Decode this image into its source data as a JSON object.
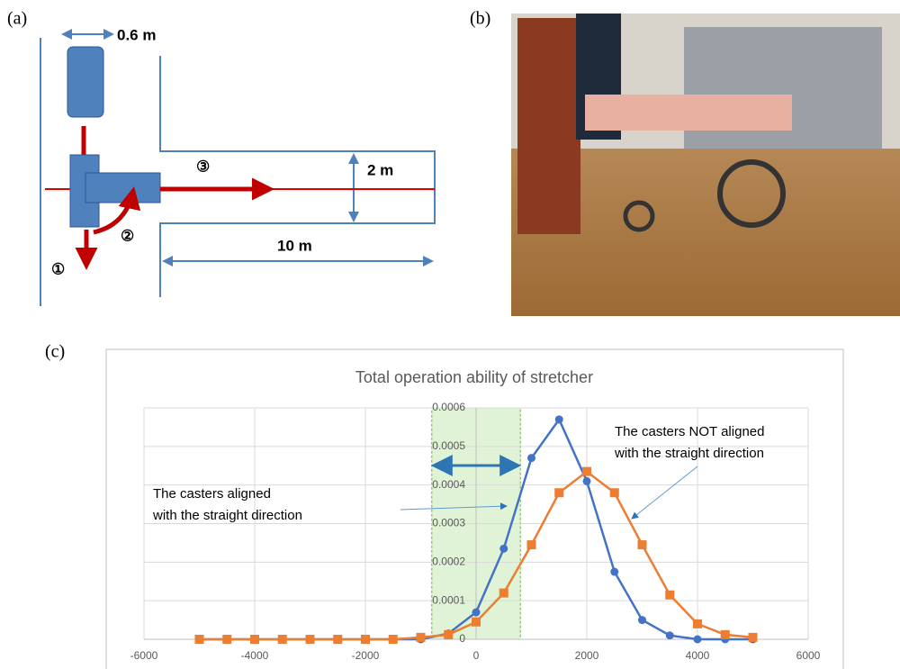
{
  "panels": {
    "a": "(a)",
    "b": "(b)",
    "c": "(c)"
  },
  "diagram": {
    "width_label": "0.6 m",
    "step1": "①",
    "step2": "②",
    "step3": "③",
    "corridor_width": "2 m",
    "corridor_length": "10 m"
  },
  "chart_data": {
    "type": "line",
    "title": "Total operation ability of stretcher",
    "x": [
      -5000,
      -4500,
      -4000,
      -3500,
      -3000,
      -2500,
      -2000,
      -1500,
      -1000,
      -500,
      0,
      500,
      1000,
      1500,
      2000,
      2500,
      3000,
      3500,
      4000,
      4500,
      5000
    ],
    "series": [
      {
        "color": "#4472c4",
        "marker": "circle",
        "values": [
          0,
          0,
          0,
          0,
          0,
          0,
          0,
          0,
          0,
          1.5e-05,
          7e-05,
          0.000235,
          0.00047,
          0.00057,
          0.00041,
          0.000175,
          5e-05,
          1e-05,
          0,
          0,
          0
        ]
      },
      {
        "color": "#ed7d31",
        "marker": "square",
        "values": [
          0,
          0,
          0,
          0,
          0,
          0,
          0,
          0,
          5e-06,
          1.2e-05,
          4.5e-05,
          0.00012,
          0.000245,
          0.00038,
          0.000435,
          0.00038,
          0.000245,
          0.000115,
          4e-05,
          1.2e-05,
          5e-06
        ]
      }
    ],
    "xlim": [
      -6000,
      6000
    ],
    "xticks": [
      -6000,
      -4000,
      -2000,
      0,
      2000,
      4000,
      6000
    ],
    "ylim": [
      0,
      0.0006
    ],
    "yticks": [
      0,
      0.0001,
      0.0002,
      0.0003,
      0.0004,
      0.0005,
      0.0006
    ],
    "grid": true,
    "shaded_range": [
      -800,
      800
    ],
    "annotations": [
      [
        "The casters aligned",
        "with the straight direction"
      ],
      [
        "The casters NOT aligned",
        "with the straight direction"
      ]
    ]
  }
}
